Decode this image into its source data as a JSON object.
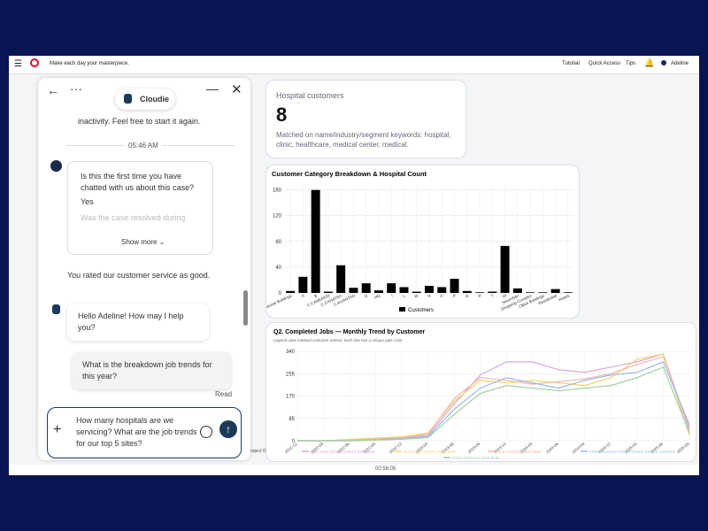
{
  "topbar": {
    "tagline": "Make each day your masterpiece.",
    "links": [
      "Tutorial",
      "Quick Access",
      "Tips"
    ],
    "user": "Adeline"
  },
  "chat": {
    "title": "Cloudie",
    "messages": {
      "inactivity": "inactivity. Feel free to start it again.",
      "time": "05:46 AM",
      "survey_q1": "Is this the first time you have chatted with us about this case?",
      "survey_a1": "Yes",
      "survey_q2": "Was the case resolved during",
      "show_more": "Show more",
      "rating": "You rated our customer service as good.",
      "greeting": "Hello Adeline! How may I help you?",
      "user_question": "What is the breakdown job trends for this year?",
      "read": "Read"
    },
    "input": "How many hospitals are we servicing? What are the job trends for our top 5 sites?"
  },
  "hospital_card": {
    "title": "Hospital customers",
    "count": 8,
    "note": "Matched on name/industry/segment keywords: hospital, clinic, healthcare, medical center, medical."
  },
  "bar_chart": {
    "type": "bar",
    "title": "Customer Category Breakdown & Hospital Count",
    "categories": [
      "Commercial Buildings",
      "A",
      "B",
      "C CAMERON",
      "C-CANATRO",
      "C-KUANTAN",
      "D",
      "HQ",
      "I",
      "L",
      "M",
      "N",
      "O",
      "P",
      "Q",
      "R",
      "T",
      "W",
      "Seremban",
      "Shopping Complex",
      "Office Buildings",
      "Residential",
      "Hotels"
    ],
    "series": [
      {
        "name": "Customers",
        "color": "#000000",
        "values": [
          3,
          25,
          160,
          2,
          43,
          8,
          15,
          4,
          15,
          9,
          2,
          11,
          9,
          22,
          3,
          1,
          2,
          73,
          7,
          1,
          1,
          6,
          1
        ]
      }
    ],
    "ylim": [
      0,
      165
    ],
    "yticks": [
      0,
      40,
      80,
      120,
      160
    ],
    "grid": true
  },
  "line_chart": {
    "type": "line",
    "title": "Q2. Completed Jobs — Monthly Trend by Customer",
    "subtitle": "Legend uses masked customer names; each line has a unique pale color.",
    "categories": [
      "2021-12",
      "2022-03",
      "2022-06",
      "2022-09",
      "2022-12",
      "2023-03",
      "2023-06",
      "2023-09",
      "2023-12",
      "2024-03",
      "2024-06",
      "2024-09",
      "2024-12",
      "2025-03",
      "2025-06",
      "2025-09"
    ],
    "series": [
      {
        "name": "LNG HAN XXXXXXXXXX SDN BHD",
        "color": "#d7a6e0",
        "values": [
          0,
          0,
          2,
          5,
          10,
          20,
          140,
          250,
          300,
          300,
          270,
          260,
          280,
          300,
          330,
          40
        ]
      },
      {
        "name": "DAXX XXXXXXXX SDN BHD",
        "color": "#f2d46a",
        "values": [
          0,
          0,
          5,
          10,
          15,
          30,
          150,
          230,
          220,
          230,
          220,
          210,
          240,
          310,
          330,
          20
        ]
      },
      {
        "name": "COX XXXXXX SDN BHD",
        "color": "#f4b6a8",
        "values": [
          0,
          0,
          3,
          6,
          12,
          25,
          160,
          240,
          230,
          215,
          225,
          235,
          255,
          290,
          320,
          50
        ]
      },
      {
        "name": "PXXXXXXXXX PXXXXXXXXX SXXXX AXXXXX",
        "color": "#9ab8e6",
        "values": [
          0,
          0,
          0,
          3,
          8,
          15,
          120,
          200,
          240,
          220,
          200,
          230,
          250,
          260,
          300,
          60
        ]
      },
      {
        "name": "SXXX DXXXXX SDN BHD",
        "color": "#9fd0a0",
        "values": [
          0,
          0,
          0,
          2,
          6,
          12,
          100,
          180,
          210,
          200,
          190,
          200,
          210,
          240,
          280,
          30
        ]
      }
    ],
    "ylim": [
      0,
      340
    ],
    "yticks": [
      0,
      85,
      170,
      255,
      340
    ],
    "grid": true
  },
  "footer": {
    "timer": "00:58:05",
    "partial": "roject O"
  }
}
